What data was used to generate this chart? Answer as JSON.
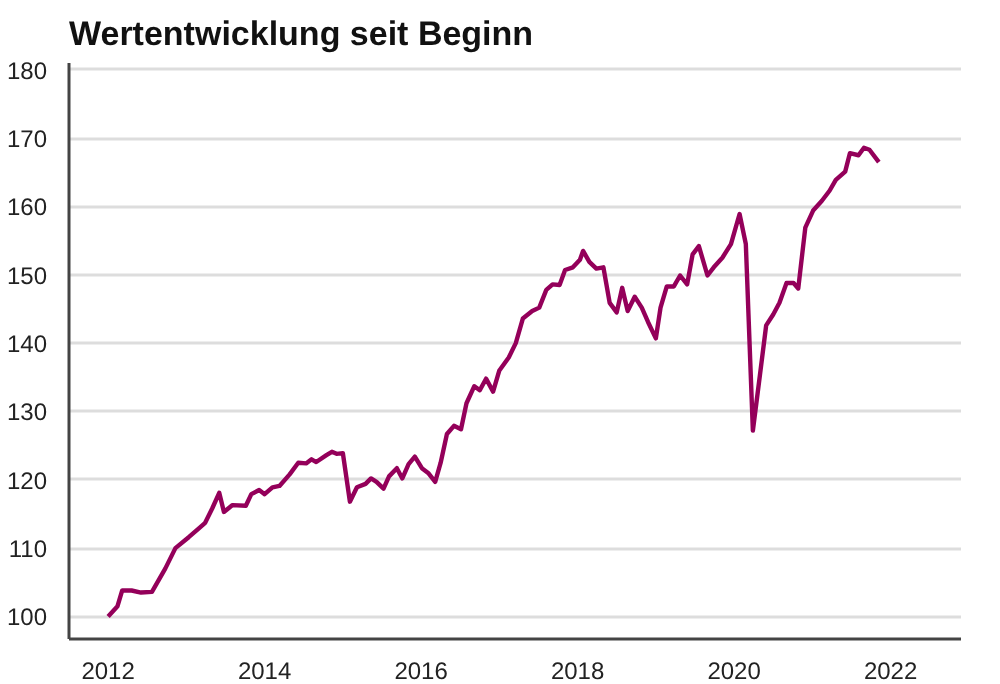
{
  "chart_data": {
    "type": "line",
    "title": "Wertentwicklung seit Beginn",
    "x": [
      2012.0,
      2012.12,
      2012.18,
      2012.3,
      2012.42,
      2012.56,
      2012.73,
      2012.86,
      2013.03,
      2013.16,
      2013.24,
      2013.33,
      2013.42,
      2013.48,
      2013.59,
      2013.76,
      2013.83,
      2013.93,
      2014.0,
      2014.1,
      2014.19,
      2014.32,
      2014.43,
      2014.53,
      2014.6,
      2014.66,
      2014.79,
      2014.86,
      2014.92,
      2015.0,
      2015.09,
      2015.18,
      2015.29,
      2015.36,
      2015.43,
      2015.52,
      2015.59,
      2015.69,
      2015.76,
      2015.84,
      2015.92,
      2016.01,
      2016.09,
      2016.18,
      2016.25,
      2016.33,
      2016.42,
      2016.51,
      2016.58,
      2016.68,
      2016.75,
      2016.83,
      2016.92,
      2017.0,
      2017.12,
      2017.21,
      2017.3,
      2017.42,
      2017.51,
      2017.6,
      2017.68,
      2017.77,
      2017.84,
      2017.94,
      2018.03,
      2018.07,
      2018.15,
      2018.24,
      2018.33,
      2018.41,
      2018.5,
      2018.57,
      2018.64,
      2018.73,
      2018.82,
      2018.9,
      2019.0,
      2019.06,
      2019.14,
      2019.23,
      2019.31,
      2019.4,
      2019.47,
      2019.55,
      2019.66,
      2019.74,
      2019.85,
      2019.96,
      2020.07,
      2020.15,
      2020.24,
      2020.33,
      2020.41,
      2020.5,
      2020.58,
      2020.67,
      2020.76,
      2020.82,
      2020.91,
      2021.01,
      2021.12,
      2021.22,
      2021.3,
      2021.42,
      2021.48,
      2021.59,
      2021.66,
      2021.73,
      2021.85
    ],
    "series": [
      {
        "color": "#94005a",
        "values": [
          100,
          101.5,
          103.8,
          103.8,
          103.5,
          103.6,
          107,
          110,
          111.6,
          112.9,
          113.7,
          115.8,
          118.1,
          115.3,
          116.3,
          116.2,
          117.9,
          118.5,
          117.9,
          118.9,
          119.1,
          120.8,
          122.5,
          122.4,
          123,
          122.6,
          123.6,
          124.1,
          123.8,
          123.9,
          116.8,
          118.9,
          119.4,
          120.2,
          119.7,
          118.7,
          120.5,
          121.7,
          120.2,
          122.3,
          123.4,
          121.7,
          121,
          119.7,
          122.5,
          126.7,
          127.9,
          127.4,
          131.2,
          133.7,
          133.1,
          134.8,
          132.9,
          136,
          137.9,
          140,
          143.6,
          144.7,
          145.2,
          147.8,
          148.6,
          148.5,
          150.7,
          151.1,
          152.2,
          153.5,
          151.9,
          150.9,
          151.1,
          145.9,
          144.5,
          148.1,
          144.7,
          146.8,
          145.2,
          143.1,
          140.7,
          145.2,
          148.3,
          148.3,
          149.9,
          148.6,
          153,
          154.2,
          149.9,
          151.1,
          152.5,
          154.5,
          158.9,
          154.5,
          127.2,
          135.3,
          142.6,
          144.2,
          145.9,
          148.8,
          148.8,
          148,
          156.9,
          159.4,
          160.8,
          162.3,
          163.9,
          165.1,
          167.8,
          167.5,
          168.6,
          168.3,
          166.5
        ]
      }
    ],
    "xlim": [
      2011.5,
      2022.9
    ],
    "xticks": [
      2012,
      2014,
      2016,
      2018,
      2020,
      2022
    ],
    "ylim": [
      96.7,
      181
    ],
    "yticks": [
      100,
      110,
      120,
      130,
      140,
      150,
      160,
      170,
      180
    ],
    "grid": "y",
    "marker": "none",
    "line_style": "solid"
  }
}
